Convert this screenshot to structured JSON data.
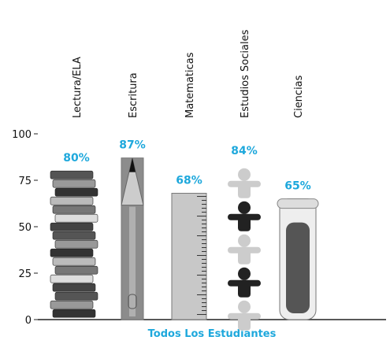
{
  "chart_data": {
    "type": "bar",
    "categories": [
      "Lectura/ELA",
      "Escritura",
      "Matematicas",
      "Estudios Sociales",
      "Ciencias"
    ],
    "values": [
      80,
      87,
      68,
      84,
      65
    ],
    "value_labels": [
      "80%",
      "87%",
      "68%",
      "84%",
      "65%"
    ],
    "value_label_color": "#1ea8dc",
    "color": "#8c8c8c",
    "xlabel": "Todos Los Estudiantes",
    "ylim": [
      0,
      100
    ],
    "yticks": [
      0,
      25,
      50,
      75,
      100
    ]
  }
}
